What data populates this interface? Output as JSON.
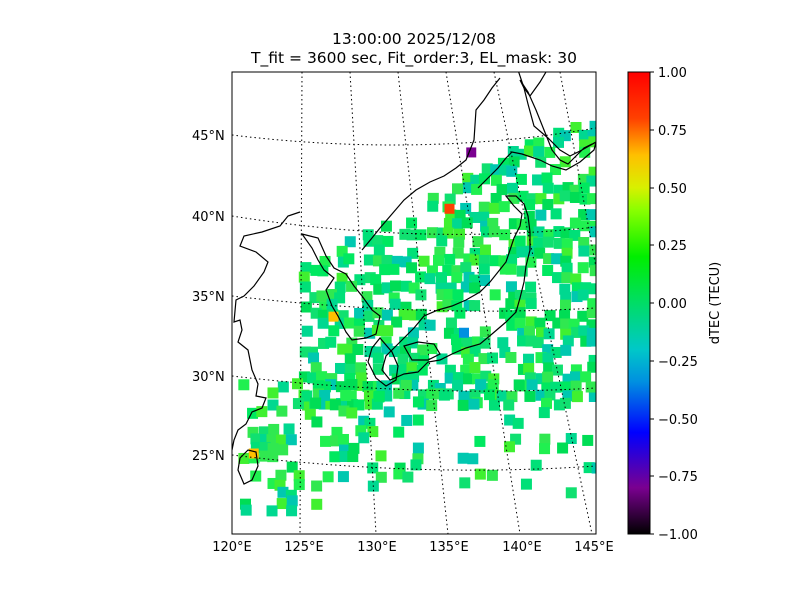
{
  "title_time": "13:00:00 2025/12/08",
  "title_params": "T_fit = 3600 sec, Fit_order:3, EL_mask: 30",
  "map": {
    "projection": "lambert-conformal",
    "lon_range": [
      120,
      145
    ],
    "lat_range": [
      20,
      48
    ],
    "graticule_style": "dotted",
    "lat_labels": [
      "45°N",
      "40°N",
      "35°N",
      "30°N",
      "25°N"
    ],
    "lon_labels": [
      "120°E",
      "125°E",
      "130°E",
      "135°E",
      "140°E",
      "145°E"
    ],
    "coastline_color": "#000000"
  },
  "colorbar": {
    "label": "dTEC (TECU)",
    "range": [
      -1.0,
      1.0
    ],
    "colormap": "nipy_spectral",
    "ticks": [
      "1.00",
      "0.75",
      "0.50",
      "0.25",
      "0.00",
      "−0.25",
      "−0.50",
      "−0.75",
      "−1.00"
    ]
  },
  "chart_data": {
    "type": "heatmap",
    "field": "dTEC",
    "unit": "TECU",
    "dominant_value_range": [
      -0.15,
      0.15
    ],
    "anomalies": [
      {
        "lon": 136.5,
        "lat": 43.7,
        "value": -0.9
      },
      {
        "lon": 135.0,
        "lat": 40.2,
        "value": 0.75
      },
      {
        "lon": 136.0,
        "lat": 32.5,
        "value": -0.5
      },
      {
        "lon": 127.0,
        "lat": 33.5,
        "value": 0.55
      },
      {
        "lon": 121.5,
        "lat": 25.0,
        "value": 0.6
      }
    ]
  }
}
